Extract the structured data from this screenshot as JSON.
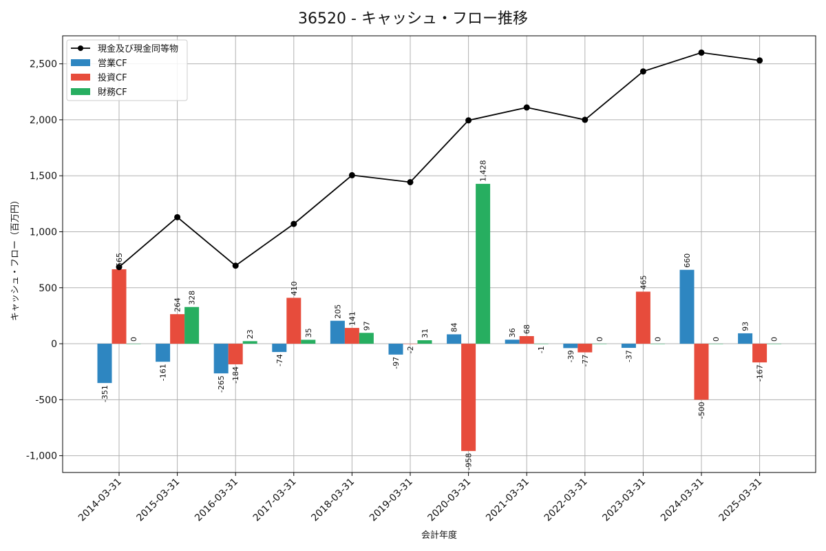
{
  "chart_data": {
    "type": "bar",
    "title": "36520 - キャッシュ・フロー推移",
    "xlabel": "会計年度",
    "ylabel": "キャッシュ・フロー（百万円）",
    "categories": [
      "2014-03-31",
      "2015-03-31",
      "2016-03-31",
      "2017-03-31",
      "2018-03-31",
      "2019-03-31",
      "2020-03-31",
      "2021-03-31",
      "2022-03-31",
      "2023-03-31",
      "2024-03-31",
      "2025-03-31"
    ],
    "series": [
      {
        "name": "営業CF",
        "kind": "bar",
        "color": "#2e86c1",
        "values": [
          -351,
          -161,
          -265,
          -74,
          205,
          -97,
          84,
          36,
          -39,
          -37,
          660,
          93
        ]
      },
      {
        "name": "投資CF",
        "kind": "bar",
        "color": "#e74c3c",
        "values": [
          665,
          264,
          -184,
          410,
          141,
          -2,
          -958,
          68,
          -77,
          465,
          -500,
          -167
        ]
      },
      {
        "name": "財務CF",
        "kind": "bar",
        "color": "#27ae60",
        "values": [
          0,
          328,
          23,
          35,
          97,
          31,
          1428,
          -1,
          0,
          0,
          0,
          0
        ]
      },
      {
        "name": "現金及び現金同等物",
        "kind": "line",
        "color": "#000000",
        "values": [
          685,
          1130,
          697,
          1070,
          1505,
          1443,
          1995,
          2110,
          2000,
          2432,
          2600,
          2530
        ]
      }
    ],
    "ylim": [
      -1150,
      2750
    ],
    "yticks": [
      -1000,
      -500,
      0,
      500,
      1000,
      1500,
      2000,
      2500
    ],
    "ytick_labels": [
      "-1,000",
      "-500",
      "0",
      "500",
      "1,000",
      "1,500",
      "2,000",
      "2,500"
    ],
    "grid": true,
    "legend_position": "top-left"
  }
}
